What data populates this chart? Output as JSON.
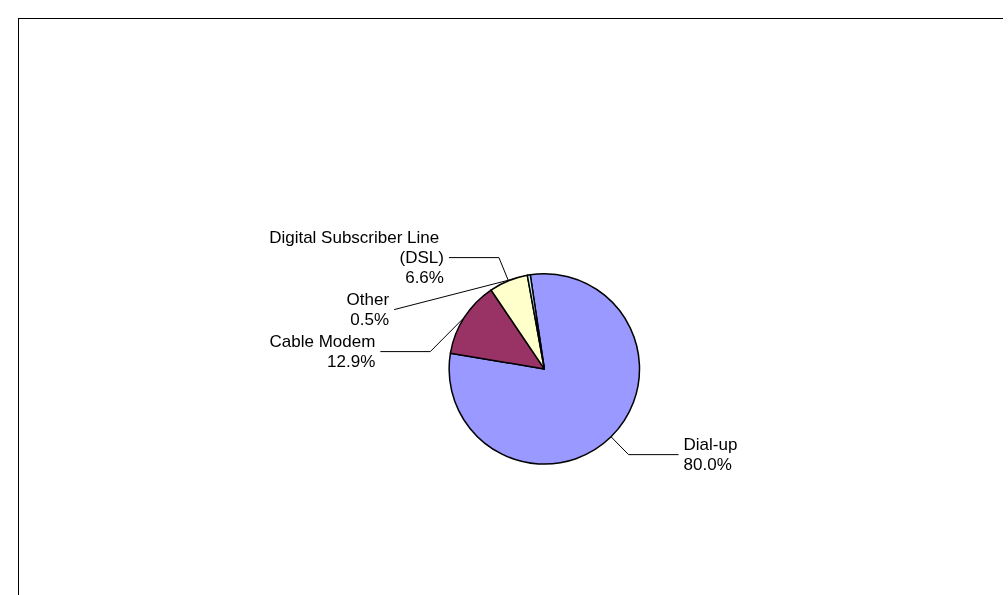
{
  "chart_data": {
    "type": "pie",
    "categories": [
      "Dial-up",
      "Cable Modem",
      "Digital Subscriber Line (DSL)",
      "Other"
    ],
    "values": [
      80.0,
      12.9,
      6.6,
      0.5
    ],
    "value_labels": [
      "80.0%",
      "12.9%",
      "6.6%",
      "0.5%"
    ],
    "colors": [
      "#9999ff",
      "#993366",
      "#ffffcc",
      "#ccffff"
    ],
    "legend": false
  }
}
